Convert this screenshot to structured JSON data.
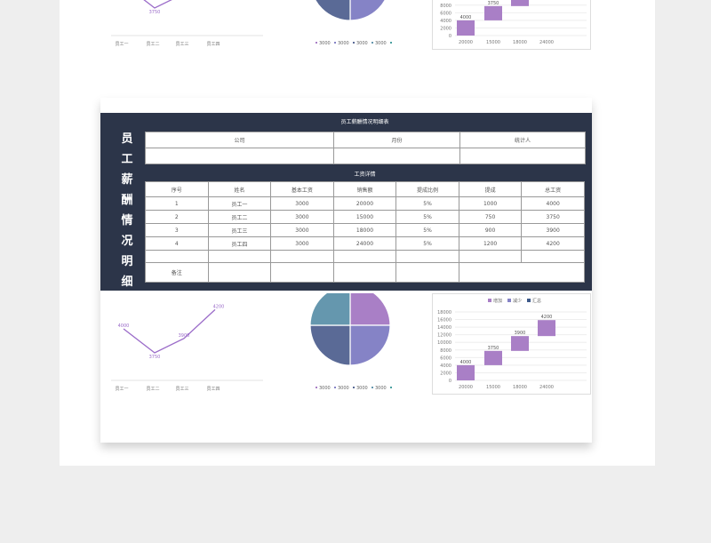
{
  "sheet": {
    "vertical_title": "员工薪酬情况明细表",
    "table_title": "员工薪酬情况明细表",
    "info_headers": [
      "公司",
      "月份",
      "统计人"
    ],
    "detail_title": "工资详情",
    "columns": [
      "序号",
      "姓名",
      "基本工资",
      "销售额",
      "提成比例",
      "提成",
      "总工资"
    ],
    "rows": [
      [
        "1",
        "员工一",
        "3000",
        "20000",
        "5%",
        "1000",
        "4000"
      ],
      [
        "2",
        "员工二",
        "3000",
        "15000",
        "5%",
        "750",
        "3750"
      ],
      [
        "3",
        "员工三",
        "3000",
        "18000",
        "5%",
        "900",
        "3900"
      ],
      [
        "4",
        "员工四",
        "3000",
        "24000",
        "5%",
        "1200",
        "4200"
      ]
    ],
    "remark_label": "备注"
  },
  "chart_data": [
    {
      "type": "line",
      "categories": [
        "员工一",
        "员工二",
        "员工三",
        "员工四"
      ],
      "values": [
        4000,
        3750,
        3900,
        4200
      ],
      "color": "#9b6cc9"
    },
    {
      "type": "pie",
      "labels": [
        "3000",
        "3000",
        "3000",
        "3000"
      ],
      "values": [
        3000,
        3000,
        3000,
        3000
      ],
      "colors": [
        "#a97fc6",
        "#8583c6",
        "#5a6a96",
        "#6597ae"
      ]
    },
    {
      "type": "bar",
      "subtype": "waterfall",
      "legend": [
        "增加",
        "减少",
        "汇总"
      ],
      "legend_colors": [
        "#a97fc6",
        "#8583c6",
        "#3e5a8a"
      ],
      "categories": [
        "20000",
        "15000",
        "18000",
        "24000"
      ],
      "values": [
        4000,
        3750,
        3900,
        4200
      ],
      "ylim": [
        0,
        18000
      ],
      "yticks": [
        0,
        2000,
        4000,
        6000,
        8000,
        10000,
        12000,
        14000,
        16000,
        18000
      ],
      "color": "#a97fc6"
    }
  ]
}
